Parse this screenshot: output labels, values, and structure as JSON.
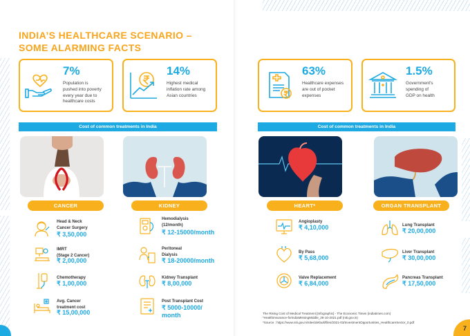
{
  "title": {
    "line1": "INDIA’S HEALTHCARE SCENARIO –",
    "line2": "SOME ALARMING FACTS"
  },
  "facts": [
    {
      "icon": "heart-hand-icon",
      "percent": "7%",
      "line1": "Population is",
      "line2": "pushed into poverty",
      "line3": "every year due to",
      "line4": "healthcare costs"
    },
    {
      "icon": "rupee-growth-icon",
      "percent": "14%",
      "line1": "Highest medical",
      "line2": "inflation rate among",
      "line3": "Asian countries"
    },
    {
      "icon": "medical-bill-icon",
      "percent": "63%",
      "line1": "Healthcare expenses",
      "line2": "are out of pocket",
      "line3": "expenses"
    },
    {
      "icon": "government-building-icon",
      "percent": "1.5%",
      "line1": "Government's",
      "line2": "spending of",
      "line3": "GDP on health"
    }
  ],
  "banners": {
    "left": "Cost of common treatments in India",
    "right": "Cost of common treatments in India"
  },
  "categories": {
    "cancer": "CANCER",
    "kidney": "KIDNEY",
    "heart": "HEART*",
    "organ": "ORGAN TRANSPLANT"
  },
  "treatments": {
    "head_neck": {
      "name": [
        "Head & Neck",
        "Cancer Surgery"
      ],
      "cost": "₹ 3,50,000"
    },
    "imrt": {
      "name": [
        "IMRT",
        "(Stage 2 Cancer)"
      ],
      "cost": "₹ 2,00,000"
    },
    "chemo": {
      "name": [
        "Chemotherapy"
      ],
      "cost": "₹ 1,00,000"
    },
    "avg_cancer": {
      "name": [
        "Avg. Cancer",
        "treatment cost"
      ],
      "cost": "₹ 15,00,000"
    },
    "hemodialysis": {
      "name": [
        "Hemodialysis",
        "(12/month)"
      ],
      "cost": "₹ 12-15000/month"
    },
    "peritoneal": {
      "name": [
        "Peritoneal",
        "Dialysis"
      ],
      "cost": "₹ 18-20000/month"
    },
    "kidney_tx": {
      "name": [
        "Kidney Transplant"
      ],
      "cost": "₹ 8,00,000"
    },
    "post_tx": {
      "name": [
        "Post Transplant Cost"
      ],
      "cost": [
        "₹ 5000-10000/",
        "month"
      ]
    },
    "angioplasty": {
      "name": [
        "Angioplasty"
      ],
      "cost": "₹ 4,10,000"
    },
    "bypass": {
      "name": [
        "By Pass"
      ],
      "cost": "₹ 5,68,000"
    },
    "valve": {
      "name": [
        "Valve Replacement"
      ],
      "cost": "₹ 6,84,000"
    },
    "lung": {
      "name": [
        "Lung Transplant"
      ],
      "cost": "₹ 20,00,000"
    },
    "liver": {
      "name": [
        "Liver Transplant"
      ],
      "cost": "₹ 30,00,000"
    },
    "pancreas": {
      "name": [
        "Pancreas Transplant"
      ],
      "cost": "₹ 17,50,000"
    }
  },
  "sources": {
    "line1": "The Rising Cost of Medical Treatment [Infographic] - The Economic Times (indiatimes.com)",
    "line2": "*Healthinsurance-forindiaMissingMiddle_28-10-2021.pdf (niti.gov.in)",
    "line3": "*Source : https://www.niti.gov.in/sites/default/files/2021-03/InvestmentOpportunities_HealthcareSector_0.pdf"
  },
  "page_number": "7",
  "colors": {
    "accent_orange": "#f8b01c",
    "accent_blue": "#1da9e1"
  }
}
